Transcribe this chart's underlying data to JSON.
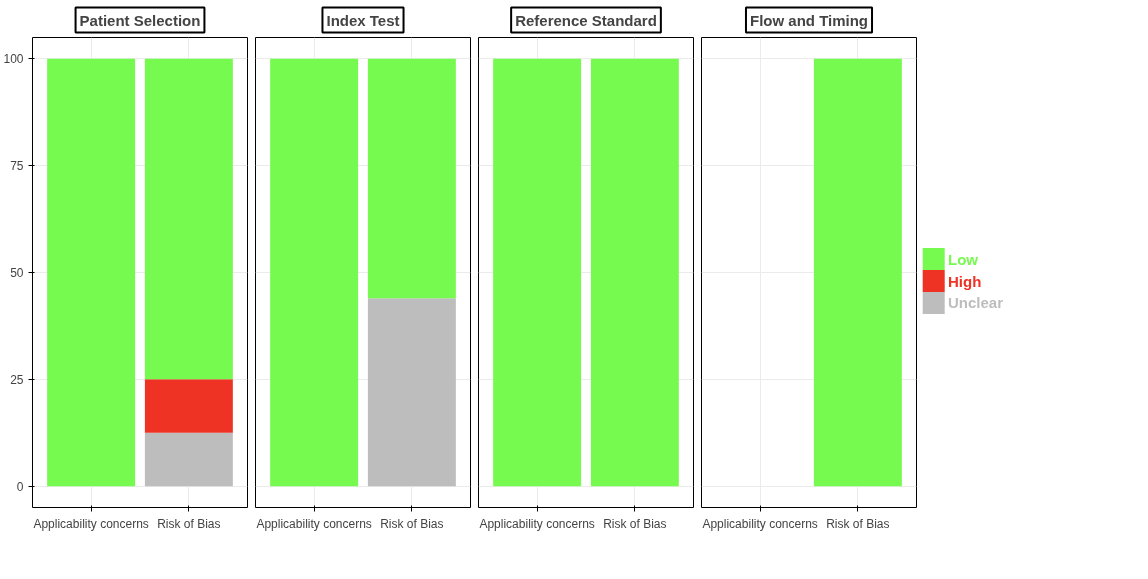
{
  "chart_data": [
    {
      "type": "bar",
      "title": "Patient Selection",
      "stacked": true,
      "categories": [
        "Applicability concerns",
        "Risk of Bias"
      ],
      "ylim": [
        -5,
        105
      ],
      "yticks": [
        0,
        25,
        50,
        75,
        100
      ],
      "grid": true,
      "series": [
        {
          "color": "#bdbdbd",
          "values": [
            0,
            12.5
          ]
        },
        {
          "color": "#ee3224",
          "values": [
            0,
            12.5
          ]
        },
        {
          "color": "#76fa4f",
          "values": [
            100,
            75
          ]
        }
      ]
    },
    {
      "type": "bar",
      "title": "Index Test",
      "stacked": true,
      "categories": [
        "Applicability concerns",
        "Risk of Bias"
      ],
      "ylim": [
        -5,
        105
      ],
      "yticks": [
        0,
        25,
        50,
        75,
        100
      ],
      "grid": true,
      "tick_labels": "x",
      "series": [
        {
          "color": "#bdbdbd",
          "values": [
            0,
            44
          ]
        },
        {
          "color": "#ee3224",
          "values": [
            0,
            0
          ]
        },
        {
          "color": "#76fa4f",
          "values": [
            100,
            56
          ]
        }
      ]
    },
    {
      "type": "bar",
      "title": "Reference Standard",
      "stacked": true,
      "categories": [
        "Applicability concerns",
        "Risk of Bias"
      ],
      "ylim": [
        -5,
        105
      ],
      "yticks": [
        0,
        25,
        50,
        75,
        100
      ],
      "grid": true,
      "tick_labels": "x",
      "series": [
        {
          "color": "#bdbdbd",
          "values": [
            0,
            0
          ]
        },
        {
          "color": "#ee3224",
          "values": [
            0,
            0
          ]
        },
        {
          "color": "#76fa4f",
          "values": [
            100,
            100
          ]
        }
      ]
    },
    {
      "type": "bar",
      "title": "Flow and Timing",
      "stacked": true,
      "categories": [
        "Applicability concerns",
        "Risk of Bias"
      ],
      "ylim": [
        -5,
        105
      ],
      "yticks": [
        0,
        25,
        50,
        75,
        100
      ],
      "grid": true,
      "tick_labels": "x",
      "legend": "right",
      "series": [
        {
          "name": "Unclear",
          "color": "#bdbdbd",
          "values": [
            null,
            0
          ]
        },
        {
          "name": "High",
          "color": "#ee3224",
          "values": [
            null,
            0
          ]
        },
        {
          "name": "Low",
          "color": "#76fa4f",
          "values": [
            null,
            100
          ]
        }
      ]
    }
  ]
}
